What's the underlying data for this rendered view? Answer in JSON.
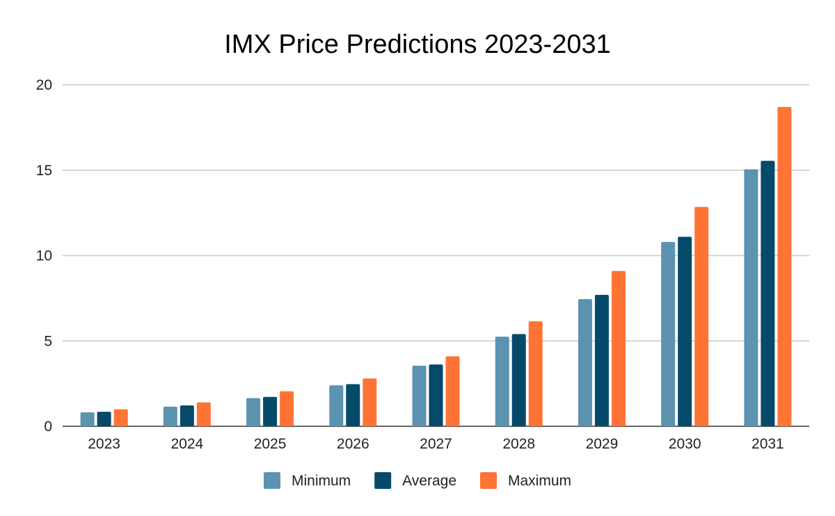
{
  "chart_data": {
    "type": "bar",
    "title": "IMX Price Predictions 2023-2031",
    "xlabel": "",
    "ylabel": "",
    "categories": [
      "2023",
      "2024",
      "2025",
      "2026",
      "2027",
      "2028",
      "2029",
      "2030",
      "2031"
    ],
    "series": [
      {
        "name": "Minimum",
        "color": "#5b93b1",
        "values": [
          0.82,
          1.15,
          1.65,
          2.4,
          3.55,
          5.25,
          7.45,
          10.8,
          15.05
        ]
      },
      {
        "name": "Average",
        "color": "#064a6a",
        "values": [
          0.85,
          1.22,
          1.72,
          2.47,
          3.62,
          5.4,
          7.7,
          11.1,
          15.55
        ]
      },
      {
        "name": "Maximum",
        "color": "#ff7435",
        "values": [
          1.0,
          1.4,
          2.05,
          2.8,
          4.1,
          6.15,
          9.1,
          12.85,
          18.7
        ]
      }
    ],
    "ylim": [
      0,
      20
    ],
    "yticks": [
      "0",
      "5",
      "10",
      "15",
      "20"
    ],
    "grid": true,
    "legend_position": "bottom"
  }
}
